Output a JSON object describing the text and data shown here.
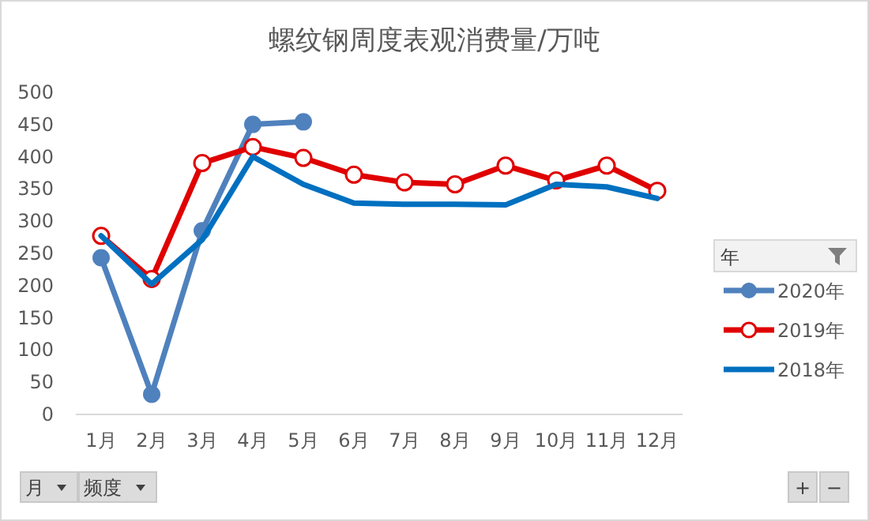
{
  "chart_data": {
    "type": "line",
    "title": "螺纹钢周度表观消费量/万吨",
    "categories": [
      "1月",
      "2月",
      "3月",
      "4月",
      "5月",
      "6月",
      "7月",
      "8月",
      "9月",
      "10月",
      "11月",
      "12月"
    ],
    "series": [
      {
        "name": "2020年",
        "color": "#4f81bd",
        "marker": "circle",
        "values": [
          242,
          30,
          284,
          449,
          453,
          null,
          null,
          null,
          null,
          null,
          null,
          null
        ]
      },
      {
        "name": "2019年",
        "color": "#e00000",
        "marker": "circle_open",
        "values": [
          276,
          209,
          389,
          414,
          397,
          371,
          359,
          356,
          385,
          362,
          385,
          346
        ]
      },
      {
        "name": "2018年",
        "color": "#0070c0",
        "marker": "none",
        "values": [
          276,
          201,
          270,
          399,
          356,
          327,
          325,
          325,
          324,
          356,
          352,
          334
        ]
      }
    ],
    "ylim": [
      0,
      500
    ],
    "yticks": [
      0,
      50,
      100,
      150,
      200,
      250,
      300,
      350,
      400,
      450,
      500
    ],
    "grid": false,
    "legend": "right",
    "legend_title": "年",
    "annotations": [
      "月",
      "频度",
      "+",
      "−"
    ]
  }
}
